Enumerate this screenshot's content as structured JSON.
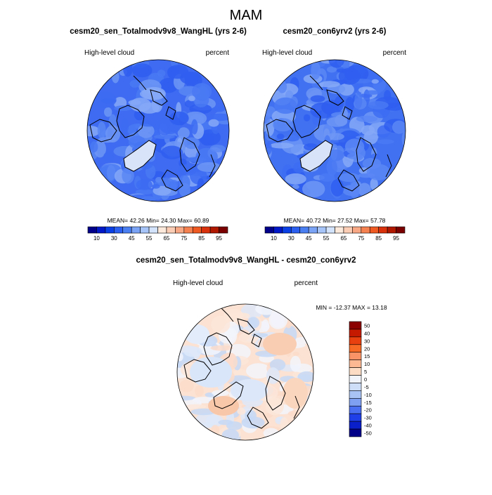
{
  "chart_data": [
    {
      "type": "heatmap",
      "projection": "polar stereographic (north)",
      "figure_title": "MAM",
      "title": "cesm20_sen_Totalmodv9v8_WangHL (yrs 2-6)",
      "left_label": "High-level cloud",
      "right_label": "percent",
      "stats_text": "MEAN=  42.26  Min=  24.30  Max=  60.89",
      "stats": {
        "mean": 42.26,
        "min": 24.3,
        "max": 60.89
      },
      "colorbar": {
        "orientation": "horizontal",
        "levels": [
          5,
          10,
          20,
          30,
          40,
          45,
          50,
          55,
          60,
          65,
          70,
          75,
          80,
          85,
          90,
          95
        ],
        "tick_labels": [
          "10",
          "30",
          "45",
          "55",
          "65",
          "75",
          "85",
          "95"
        ]
      }
    },
    {
      "type": "heatmap",
      "projection": "polar stereographic (north)",
      "title": "cesm20_con6yrv2 (yrs 2-6)",
      "left_label": "High-level cloud",
      "right_label": "percent",
      "stats_text": "MEAN=  40.72  Min=  27.52  Max=  57.78",
      "stats": {
        "mean": 40.72,
        "min": 27.52,
        "max": 57.78
      },
      "colorbar": {
        "orientation": "horizontal",
        "levels": [
          5,
          10,
          20,
          30,
          40,
          45,
          50,
          55,
          60,
          65,
          70,
          75,
          80,
          85,
          90,
          95
        ],
        "tick_labels": [
          "10",
          "30",
          "45",
          "55",
          "65",
          "75",
          "85",
          "95"
        ]
      }
    },
    {
      "type": "heatmap",
      "projection": "polar stereographic (north)",
      "title": "cesm20_sen_Totalmodv9v8_WangHL - cesm20_con6yrv2",
      "left_label": "High-level cloud",
      "right_label": "percent",
      "stats_text": "MIN = -12.37 MAX =  13.18",
      "stats": {
        "min": -12.37,
        "max": 13.18
      },
      "colorbar": {
        "orientation": "vertical",
        "levels": [
          50,
          40,
          30,
          20,
          15,
          10,
          5,
          0,
          -5,
          -10,
          -15,
          -20,
          -30,
          -40,
          -50
        ],
        "tick_labels": [
          "50",
          "40",
          "30",
          "20",
          "15",
          "10",
          "5",
          "0",
          "-5",
          "-10",
          "-15",
          "-20",
          "-30",
          "-40",
          "-50"
        ]
      }
    }
  ],
  "palettes": {
    "abs": [
      "#00008b",
      "#0018c8",
      "#0a3fe6",
      "#2a5fef",
      "#4a7ff2",
      "#7aa2f5",
      "#a6c4f8",
      "#d2e3fb",
      "#fde8dc",
      "#fbcdb4",
      "#f8a884",
      "#f58050",
      "#ef5a23",
      "#d8310b",
      "#b01800",
      "#7a0000"
    ],
    "abs_map": [
      "#2f5ef0",
      "#3d6cf2",
      "#4a79f3",
      "#5b87f4",
      "#6f97f5",
      "#86a9f7"
    ],
    "diff": [
      "#8b0000",
      "#c51a00",
      "#e8400f",
      "#f76a25",
      "#fa9466",
      "#fbb893",
      "#fcdcc4",
      "#f1f4fb",
      "#cfdef8",
      "#a9c4f4",
      "#7f9ff0",
      "#4a6ff0",
      "#1f3fe8",
      "#0a1ec9",
      "#000089"
    ],
    "diff_map": [
      "#fbdccb",
      "#fce6d9",
      "#f2f5fb",
      "#dde8f9",
      "#c6d8f6"
    ]
  }
}
